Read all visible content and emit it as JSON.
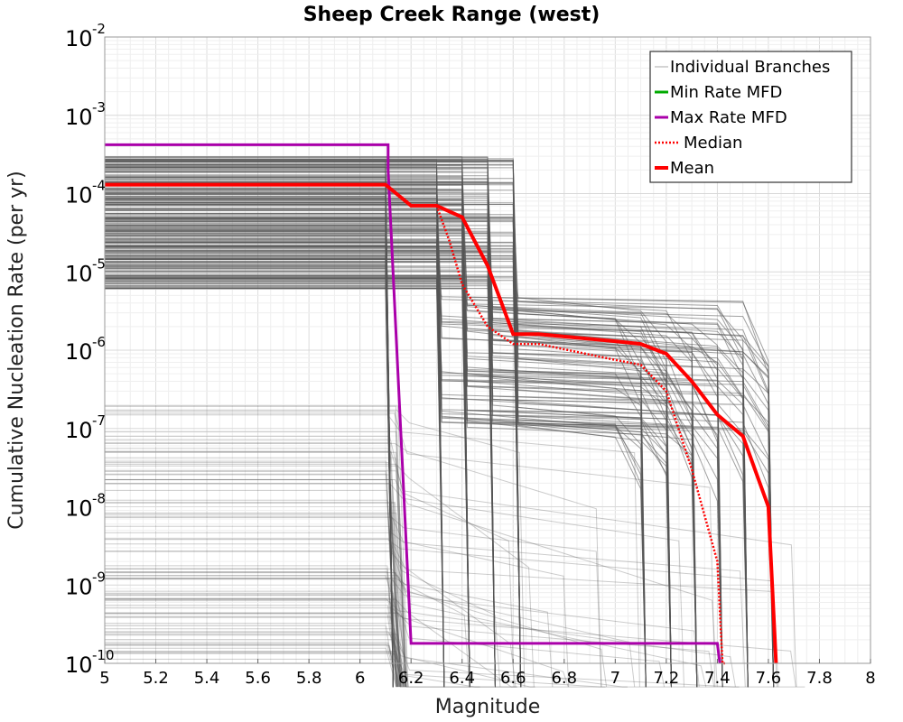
{
  "chart_data": {
    "type": "line",
    "title": "Sheep Creek Range (west)",
    "xlabel": "Magnitude",
    "ylabel": "Cumulative Nucleation Rate (per yr)",
    "xlim": [
      5,
      8
    ],
    "ylim": [
      1e-10,
      0.01
    ],
    "yscale": "log",
    "grid": true,
    "legend_position": "top-right",
    "x_ticks": [
      "5",
      "5.2",
      "5.4",
      "5.6",
      "5.8",
      "6",
      "6.2",
      "6.4",
      "6.6",
      "6.8",
      "7",
      "7.2",
      "7.4",
      "7.6",
      "7.8",
      "8"
    ],
    "y_ticks": [
      {
        "base": "10",
        "exp": "-2",
        "value": 0.01
      },
      {
        "base": "10",
        "exp": "-3",
        "value": 0.001
      },
      {
        "base": "10",
        "exp": "-4",
        "value": 0.0001
      },
      {
        "base": "10",
        "exp": "-5",
        "value": 1e-05
      },
      {
        "base": "10",
        "exp": "-6",
        "value": 1e-06
      },
      {
        "base": "10",
        "exp": "-7",
        "value": 1e-07
      },
      {
        "base": "10",
        "exp": "-8",
        "value": 1e-08
      },
      {
        "base": "10",
        "exp": "-9",
        "value": 1e-09
      },
      {
        "base": "10",
        "exp": "-10",
        "value": 1e-10
      }
    ],
    "legend": [
      {
        "label": "Individual Branches",
        "color": "#aaaaaa",
        "style": "thin"
      },
      {
        "label": "Min Rate MFD",
        "color": "#00aa00",
        "style": "solid"
      },
      {
        "label": "Max Rate MFD",
        "color": "#aa00aa",
        "style": "solid"
      },
      {
        "label": "Median",
        "color": "#ff0000",
        "style": "dotted"
      },
      {
        "label": "Mean",
        "color": "#ff0000",
        "style": "thick"
      }
    ],
    "series": [
      {
        "name": "Max Rate MFD",
        "color": "#aa00aa",
        "x": [
          5,
          6.11,
          6.11,
          6.2,
          6.2,
          7.4,
          7.4,
          7.41
        ],
        "y": [
          0.00042,
          0.00042,
          0.0002,
          1.8e-10,
          1.8e-10,
          1.8e-10,
          1.8e-10,
          1e-10
        ]
      },
      {
        "name": "Median",
        "color": "#ff0000",
        "style": "dotted",
        "x": [
          5,
          6.1,
          6.2,
          6.3,
          6.35,
          6.4,
          6.5,
          6.6,
          6.7,
          7.0,
          7.1,
          7.2,
          7.3,
          7.4,
          7.42,
          7.43
        ],
        "y": [
          0.00013,
          0.00013,
          7e-05,
          7e-05,
          2.5e-05,
          7e-06,
          2e-06,
          1.2e-06,
          1.2e-06,
          7.5e-07,
          6.5e-07,
          3e-07,
          3e-08,
          2e-09,
          1e-10,
          1e-10
        ]
      },
      {
        "name": "Mean",
        "color": "#ff0000",
        "style": "thick",
        "x": [
          5,
          6.1,
          6.2,
          6.3,
          6.4,
          6.5,
          6.6,
          6.7,
          7.0,
          7.1,
          7.2,
          7.3,
          7.4,
          7.5,
          7.6,
          7.63
        ],
        "y": [
          0.00013,
          0.00013,
          7e-05,
          7e-05,
          5e-05,
          1.2e-05,
          1.6e-06,
          1.6e-06,
          1.3e-06,
          1.2e-06,
          9e-07,
          4e-07,
          1.5e-07,
          8e-08,
          1e-08,
          1e-10
        ]
      }
    ],
    "branches": {
      "color": "#555555",
      "description_groups": [
        {
          "rate_range": [
            6e-06,
            0.0003
          ],
          "drop_magnitudes": [
            6.1,
            6.3,
            6.4,
            6.5,
            6.6
          ],
          "tail_range": [
            1e-07,
            5e-06
          ],
          "tail_drop": [
            7.1,
            7.6
          ]
        },
        {
          "rate_range": [
            1e-10,
            2e-07
          ],
          "drop_magnitudes": [
            6.1,
            6.2
          ]
        }
      ]
    }
  }
}
